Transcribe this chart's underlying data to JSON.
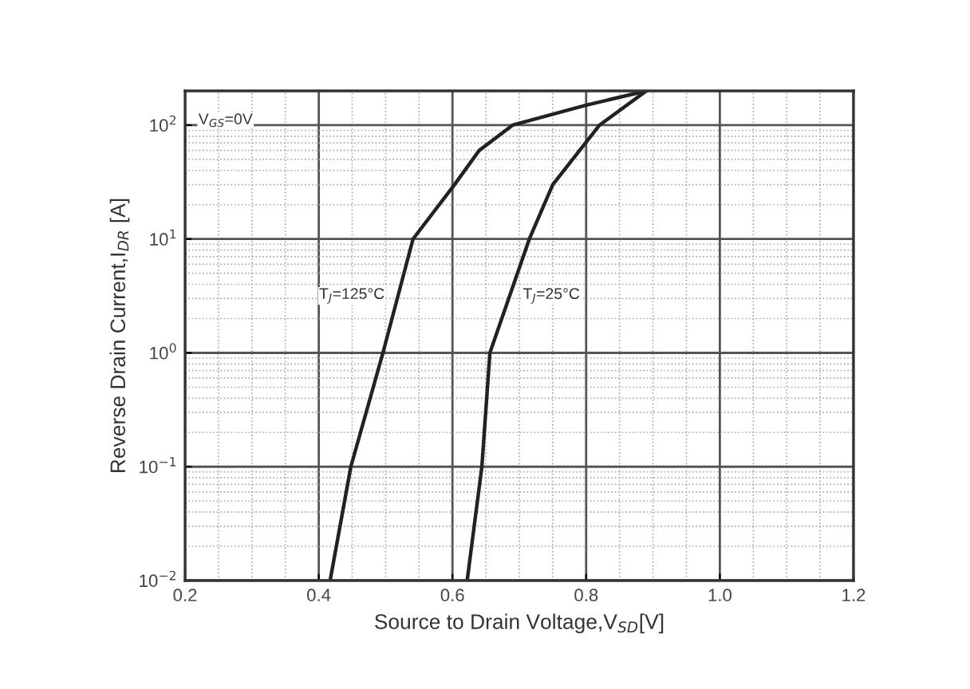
{
  "chart_data": {
    "type": "line",
    "xlabel": "Source to Drain Voltage,V$_{SD}$[V]",
    "ylabel": "Reverse Drain Current,I$_{DR}$ [A]",
    "log": "y",
    "grid": true,
    "marker": "none",
    "line_style": "solid",
    "legend": false,
    "xlim": [
      0.2,
      1.2
    ],
    "xticks": [
      0.2,
      0.4,
      0.6,
      0.8,
      {
        "value": 1.0,
        "label": "1.0"
      },
      1.2
    ],
    "ylim": [
      0.01,
      200
    ],
    "yticks": [
      {
        "value": 0.01,
        "label": "10$^{−2}$"
      },
      {
        "value": 0.1,
        "label": "10$^{−1}$"
      },
      {
        "value": 1,
        "label": "10$^{0}$"
      },
      {
        "value": 10,
        "label": "10$^{1}$"
      },
      {
        "value": 100,
        "label": "10$^{2}$"
      }
    ],
    "annotations": [
      "V$_{GS}$=0V"
    ],
    "series": [
      {
        "name": "T$_{J}$=125°C",
        "color": "#222222",
        "x": [
          0.417,
          0.448,
          0.496,
          0.541,
          0.603,
          0.64,
          0.69,
          0.8,
          0.89
        ],
        "values": [
          0.01,
          0.1,
          1,
          10,
          30,
          60,
          100,
          150,
          200
        ]
      },
      {
        "name": "T$_{J}$=25°C",
        "color": "#222222",
        "x": [
          0.622,
          0.644,
          0.656,
          0.715,
          0.75,
          0.82,
          0.89
        ],
        "values": [
          0.01,
          0.1,
          1,
          10,
          30,
          100,
          200
        ]
      }
    ]
  }
}
